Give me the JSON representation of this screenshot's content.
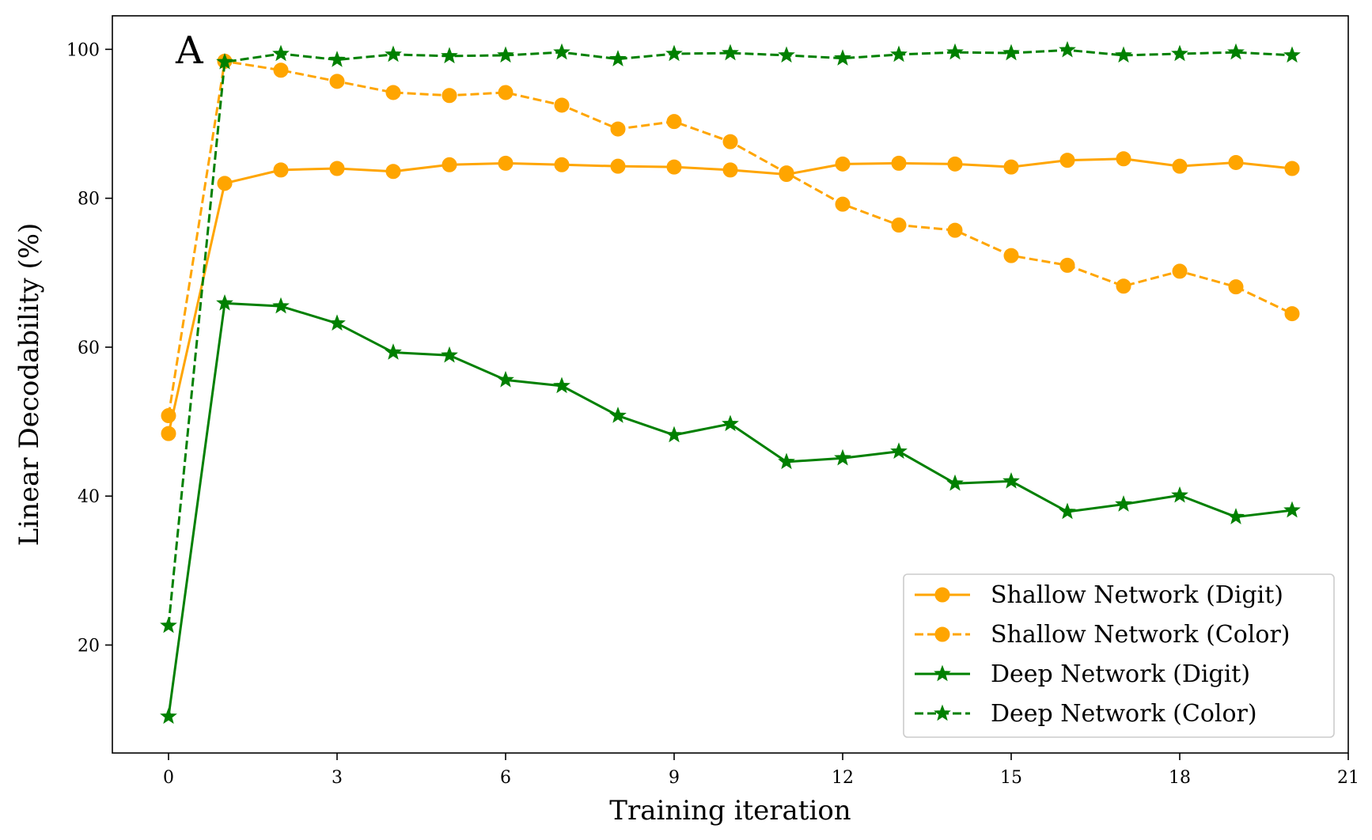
{
  "chart_data": {
    "type": "line",
    "panel_label": "A",
    "xlabel": "Training iteration",
    "ylabel": "Linear Decodability (%)",
    "xlim": [
      -1,
      21
    ],
    "ylim": [
      5.5,
      104.5
    ],
    "xticks": [
      0,
      3,
      6,
      9,
      12,
      15,
      18,
      21
    ],
    "yticks": [
      20,
      40,
      60,
      80,
      100
    ],
    "grid": false,
    "legend_position": "bottom-right",
    "x": [
      0,
      1,
      2,
      3,
      4,
      5,
      6,
      7,
      8,
      9,
      10,
      11,
      12,
      13,
      14,
      15,
      16,
      17,
      18,
      19,
      20
    ],
    "series": [
      {
        "name": "Shallow Network (Digit)",
        "color": "#FFA500",
        "linestyle": "solid",
        "marker": "circle",
        "values": [
          48.4,
          82.0,
          83.8,
          84.0,
          83.6,
          84.5,
          84.7,
          84.5,
          84.3,
          84.2,
          83.8,
          83.2,
          84.6,
          84.7,
          84.6,
          84.2,
          85.1,
          85.3,
          84.3,
          84.8,
          84.0
        ]
      },
      {
        "name": "Shallow Network (Color)",
        "color": "#FFA500",
        "linestyle": "dashed",
        "marker": "circle",
        "values": [
          50.8,
          98.4,
          97.2,
          95.7,
          94.2,
          93.8,
          94.2,
          92.5,
          89.3,
          90.3,
          87.6,
          83.4,
          79.2,
          76.4,
          75.7,
          72.3,
          71.0,
          68.2,
          70.2,
          68.1,
          64.5
        ]
      },
      {
        "name": "Deep Network (Digit)",
        "color": "#008000",
        "linestyle": "solid",
        "marker": "star",
        "values": [
          10.4,
          65.9,
          65.5,
          63.2,
          59.3,
          58.9,
          55.6,
          54.8,
          50.8,
          48.2,
          49.7,
          44.6,
          45.1,
          46.0,
          41.7,
          42.0,
          37.9,
          38.9,
          40.1,
          37.2,
          38.1
        ]
      },
      {
        "name": "Deep Network (Color)",
        "color": "#008000",
        "linestyle": "dashed",
        "marker": "star",
        "values": [
          22.6,
          98.3,
          99.4,
          98.6,
          99.3,
          99.1,
          99.2,
          99.6,
          98.7,
          99.4,
          99.5,
          99.2,
          98.8,
          99.3,
          99.6,
          99.5,
          99.9,
          99.2,
          99.4,
          99.6,
          99.2
        ]
      }
    ]
  }
}
